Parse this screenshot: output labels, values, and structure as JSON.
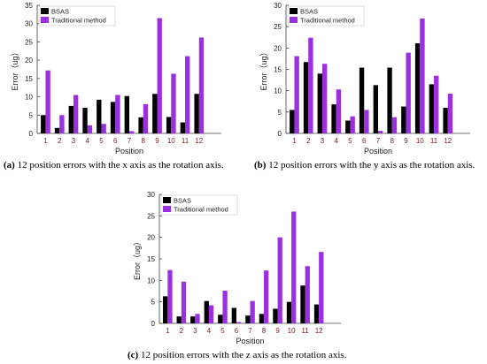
{
  "colors": {
    "bsas": "#000000",
    "traditional": "#9b30e0",
    "axis": "#404040",
    "xtick": "#7a1f1f"
  },
  "charts": [
    {
      "caption_letter": "(a)",
      "caption_text": " 12 position errors with the x axis as the rotation axis.",
      "xlabel": "Position",
      "ylabel": "Error（ug）"
    },
    {
      "caption_letter": "(b)",
      "caption_text": " 12 position errors with the y axis as the rotation axis.",
      "xlabel": "Position",
      "ylabel": "Error（ug）"
    },
    {
      "caption_letter": "(c)",
      "caption_text": " 12 position errors with the z axis as the rotation axis.",
      "xlabel": "Position",
      "ylabel": "Error（ug）"
    }
  ],
  "chart_data": [
    {
      "type": "bar",
      "categories": [
        "1",
        "2",
        "3",
        "4",
        "5",
        "6",
        "7",
        "8",
        "9",
        "10",
        "11",
        "12"
      ],
      "ylim": [
        0,
        35
      ],
      "yticks": [
        0,
        5,
        10,
        15,
        20,
        25,
        30,
        35
      ],
      "legend_position": "top-left",
      "series": [
        {
          "name": "BSAS",
          "values": [
            5.0,
            1.5,
            7.5,
            7.0,
            9.2,
            8.6,
            10.2,
            4.4,
            10.8,
            4.5,
            3.0,
            10.8
          ]
        },
        {
          "name": "Traditional method",
          "values": [
            17.2,
            5.0,
            10.5,
            2.2,
            2.6,
            10.5,
            0.6,
            8.0,
            31.5,
            16.3,
            21.1,
            26.2
          ]
        }
      ]
    },
    {
      "type": "bar",
      "categories": [
        "1",
        "2",
        "3",
        "4",
        "5",
        "6",
        "7",
        "8",
        "9",
        "10",
        "11",
        "12"
      ],
      "ylim": [
        0,
        30
      ],
      "yticks": [
        0,
        5,
        10,
        15,
        20,
        25,
        30
      ],
      "legend_position": "top-left",
      "series": [
        {
          "name": "BSAS",
          "values": [
            5.5,
            16.7,
            14.0,
            6.8,
            3.0,
            15.4,
            11.3,
            15.4,
            6.3,
            21.1,
            11.5,
            6.0
          ]
        },
        {
          "name": "Traditional method",
          "values": [
            18.1,
            22.4,
            16.3,
            10.3,
            4.0,
            5.5,
            0.6,
            3.8,
            18.9,
            26.9,
            13.5,
            9.3
          ]
        }
      ]
    },
    {
      "type": "bar",
      "categories": [
        "1",
        "2",
        "3",
        "4",
        "5",
        "6",
        "7",
        "8",
        "9",
        "10",
        "11",
        "12"
      ],
      "ylim": [
        0,
        30
      ],
      "yticks": [
        0,
        5,
        10,
        15,
        20,
        25,
        30
      ],
      "legend_position": "top-left",
      "series": [
        {
          "name": "BSAS",
          "values": [
            6.3,
            1.6,
            1.6,
            5.2,
            2.0,
            3.6,
            1.8,
            2.2,
            3.4,
            5.0,
            8.8,
            4.4
          ]
        },
        {
          "name": "Traditional method",
          "values": [
            12.4,
            9.7,
            2.2,
            4.2,
            7.6,
            0.3,
            5.2,
            12.3,
            20.0,
            26.0,
            13.3,
            16.6
          ]
        }
      ]
    }
  ]
}
